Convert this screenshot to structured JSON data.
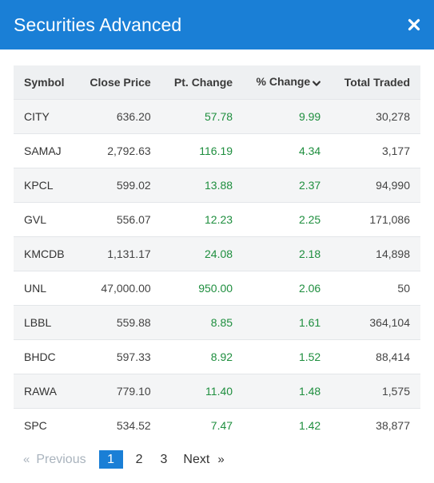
{
  "modal": {
    "title": "Securities Advanced",
    "close_icon": "close-icon"
  },
  "table": {
    "headers": {
      "symbol": "Symbol",
      "close_price": "Close Price",
      "pt_change": "Pt. Change",
      "pct_change": "% Change",
      "total_traded": "Total Traded"
    },
    "sort_indicator_icon": "chevron-down-icon",
    "rows": [
      {
        "symbol": "CITY",
        "close_price": "636.20",
        "pt_change": "57.78",
        "pct_change": "9.99",
        "total_traded": "30,278"
      },
      {
        "symbol": "SAMAJ",
        "close_price": "2,792.63",
        "pt_change": "116.19",
        "pct_change": "4.34",
        "total_traded": "3,177"
      },
      {
        "symbol": "KPCL",
        "close_price": "599.02",
        "pt_change": "13.88",
        "pct_change": "2.37",
        "total_traded": "94,990"
      },
      {
        "symbol": "GVL",
        "close_price": "556.07",
        "pt_change": "12.23",
        "pct_change": "2.25",
        "total_traded": "171,086"
      },
      {
        "symbol": "KMCDB",
        "close_price": "1,131.17",
        "pt_change": "24.08",
        "pct_change": "2.18",
        "total_traded": "14,898"
      },
      {
        "symbol": "UNL",
        "close_price": "47,000.00",
        "pt_change": "950.00",
        "pct_change": "2.06",
        "total_traded": "50"
      },
      {
        "symbol": "LBBL",
        "close_price": "559.88",
        "pt_change": "8.85",
        "pct_change": "1.61",
        "total_traded": "364,104"
      },
      {
        "symbol": "BHDC",
        "close_price": "597.33",
        "pt_change": "8.92",
        "pct_change": "1.52",
        "total_traded": "88,414"
      },
      {
        "symbol": "RAWA",
        "close_price": "779.10",
        "pt_change": "11.40",
        "pct_change": "1.48",
        "total_traded": "1,575"
      },
      {
        "symbol": "SPC",
        "close_price": "534.52",
        "pt_change": "7.47",
        "pct_change": "1.42",
        "total_traded": "38,877"
      }
    ]
  },
  "pagination": {
    "prev_arrow": "«",
    "previous": "Previous",
    "pages": [
      "1",
      "2",
      "3"
    ],
    "active_page": "1",
    "next": "Next",
    "next_arrow": "»"
  },
  "colors": {
    "header_bg": "#1a7fd6",
    "positive": "#1e8e3e",
    "active_page_bg": "#1a7fd6"
  }
}
